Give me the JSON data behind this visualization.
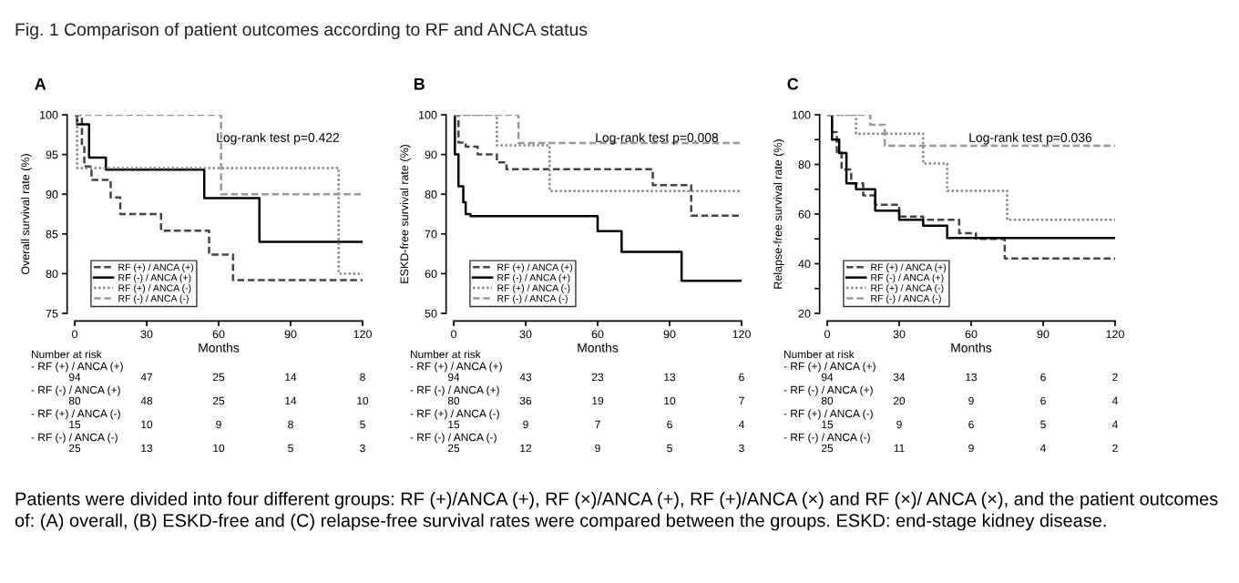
{
  "chart_data": [
    {
      "type": "step",
      "title": "A",
      "xlabel": "Months",
      "ylabel": "Overall survival rate (%)",
      "xlim": [
        0,
        120
      ],
      "ylim": [
        75,
        100
      ],
      "xticks": [
        0,
        30,
        60,
        90,
        120
      ],
      "yticks": [
        75,
        80,
        85,
        90,
        95,
        100
      ],
      "legend": "bottom left",
      "series": [
        {
          "name": "RF (+) / ANCA (+)",
          "color": "#444444",
          "line_style": "dashed",
          "x": [
            0,
            3,
            4,
            7,
            15,
            19,
            36,
            56,
            66,
            120
          ],
          "values": [
            100,
            96,
            93.5,
            91.8,
            89.6,
            87.5,
            85.4,
            82.4,
            79.2,
            79.2
          ]
        },
        {
          "name": "RF (-) / ANCA (+)",
          "color": "#000000",
          "line_style": "solid",
          "x": [
            0,
            1,
            6,
            13,
            54,
            77,
            120
          ],
          "values": [
            100,
            98.8,
            94.6,
            93.1,
            89.5,
            84,
            84
          ]
        },
        {
          "name": "RF (+) / ANCA (-)",
          "color": "#888888",
          "line_style": "dotted",
          "x": [
            0,
            1,
            110,
            120
          ],
          "values": [
            100,
            93.3,
            80,
            80
          ]
        },
        {
          "name": "RF (-) / ANCA (-)",
          "color": "#999999",
          "line_style": "dashed",
          "x": [
            0,
            61,
            120
          ],
          "values": [
            100,
            90,
            90
          ]
        }
      ],
      "annotations": [
        "Fig. 1 Comparison of patient outcomes according to RF and ANCA status",
        "Patients were divided into four different groups: RF (+)/ANCA (+), RF (×)/ANCA (+), RF (+)/ANCA (×) and RF (×)/ ANCA (×), and the patient outcomes of: (A) overall, (B) ESKD-free and (C) relapse-free survival rates were compared between the groups. ESKD: end-stage kidney disease.",
        "Log-rank test p=0.422",
        "Number at risk",
        "- RF (+) / ANCA (+)",
        "94",
        "47",
        "25",
        "14",
        "8",
        "- RF (-) / ANCA (+)",
        "80",
        "48",
        "25",
        "14",
        "10",
        "- RF (+) / ANCA (-)",
        "15",
        "10",
        "9",
        "8",
        "5",
        "- RF (-) / ANCA (-)",
        "25",
        "13",
        "10",
        "5",
        "3"
      ]
    },
    {
      "type": "step",
      "title": "B",
      "xlabel": "Months",
      "ylabel": "ESKD-free survival rate (%)",
      "xlim": [
        0,
        120
      ],
      "ylim": [
        50,
        100
      ],
      "xticks": [
        0,
        30,
        60,
        90,
        120
      ],
      "yticks": [
        50,
        60,
        70,
        80,
        90,
        100
      ],
      "legend": "bottom left",
      "series": [
        {
          "name": "RF (+) / ANCA (+)",
          "color": "#444444",
          "line_style": "dashed",
          "x": [
            0,
            2,
            5,
            10,
            18,
            22,
            83,
            99,
            120
          ],
          "values": [
            100,
            93,
            92,
            90,
            88,
            86.3,
            82.3,
            74.6,
            74.6
          ]
        },
        {
          "name": "RF (-) / ANCA (+)",
          "color": "#000000",
          "line_style": "solid",
          "x": [
            0,
            0.5,
            2,
            4,
            5,
            7,
            60,
            70,
            95,
            120
          ],
          "values": [
            100,
            90,
            82,
            78,
            75,
            74.5,
            70.7,
            65.5,
            58.2,
            58.2
          ]
        },
        {
          "name": "RF (+) / ANCA (-)",
          "color": "#888888",
          "line_style": "dotted",
          "x": [
            0,
            18,
            40,
            120
          ],
          "values": [
            100,
            92.3,
            80.8,
            80.8
          ]
        },
        {
          "name": "RF (-) / ANCA (-)",
          "color": "#999999",
          "line_style": "dashed",
          "x": [
            0,
            27,
            120
          ],
          "values": [
            100,
            92.9,
            92.9
          ]
        }
      ],
      "annotations": [
        "Log-rank test p=0.008",
        "Number at risk",
        "- RF (+) / ANCA (+)",
        "94",
        "43",
        "23",
        "13",
        "6",
        "- RF (-) / ANCA (+)",
        "80",
        "36",
        "19",
        "10",
        "7",
        "- RF (+) / ANCA (-)",
        "15",
        "9",
        "7",
        "6",
        "4",
        "- RF (-) / ANCA (-)",
        "25",
        "12",
        "9",
        "5",
        "3"
      ]
    },
    {
      "type": "step",
      "title": "C",
      "xlabel": "Months",
      "ylabel": "Relapse-free survival rate (%)",
      "xlim": [
        0,
        120
      ],
      "ylim": [
        20,
        100
      ],
      "xticks": [
        0,
        30,
        60,
        90,
        120
      ],
      "yticks": [
        20,
        {
          "value": 30,
          "label": null
        },
        40,
        {
          "value": 50,
          "label": null
        },
        60,
        {
          "value": 70,
          "label": null
        },
        80,
        {
          "value": 90,
          "label": null
        },
        100
      ],
      "legend": "bottom left",
      "series": [
        {
          "name": "RF (+) / ANCA (+)",
          "color": "#444444",
          "line_style": "dashed",
          "x": [
            0,
            2,
            4,
            6,
            10,
            15,
            20,
            30,
            40,
            55,
            62,
            74,
            120
          ],
          "values": [
            100,
            93,
            85,
            78,
            72.4,
            67.5,
            63.8,
            59,
            57.7,
            52.3,
            50,
            42.1,
            42.1
          ]
        },
        {
          "name": "RF (-) / ANCA (+)",
          "color": "#000000",
          "line_style": "solid",
          "x": [
            0,
            2,
            5,
            8,
            12,
            20,
            30,
            40,
            50,
            120
          ],
          "values": [
            100,
            90,
            84.6,
            72.4,
            70,
            61.4,
            57.7,
            55.3,
            50.4,
            50.4
          ]
        },
        {
          "name": "RF (+) / ANCA (-)",
          "color": "#888888",
          "line_style": "dotted",
          "x": [
            0,
            12,
            40,
            50,
            75,
            120
          ],
          "values": [
            100,
            92.4,
            80.4,
            69.4,
            57.7,
            57.7
          ]
        },
        {
          "name": "RF (-) / ANCA (-)",
          "color": "#999999",
          "line_style": "dashed",
          "x": [
            0,
            18,
            24,
            120
          ],
          "values": [
            100,
            96,
            87.5,
            87.5
          ]
        }
      ],
      "annotations": [
        "Log-rank test p=0.036",
        "Number at risk",
        "- RF (+) / ANCA (+)",
        "94",
        "34",
        "13",
        "6",
        "2",
        "- RF (-) / ANCA (+)",
        "80",
        "20",
        "9",
        "6",
        "4",
        "- RF (+) / ANCA (-)",
        "15",
        "9",
        "6",
        "5",
        "4",
        "- RF (-) / ANCA (-)",
        "25",
        "11",
        "9",
        "4",
        "2"
      ]
    }
  ]
}
